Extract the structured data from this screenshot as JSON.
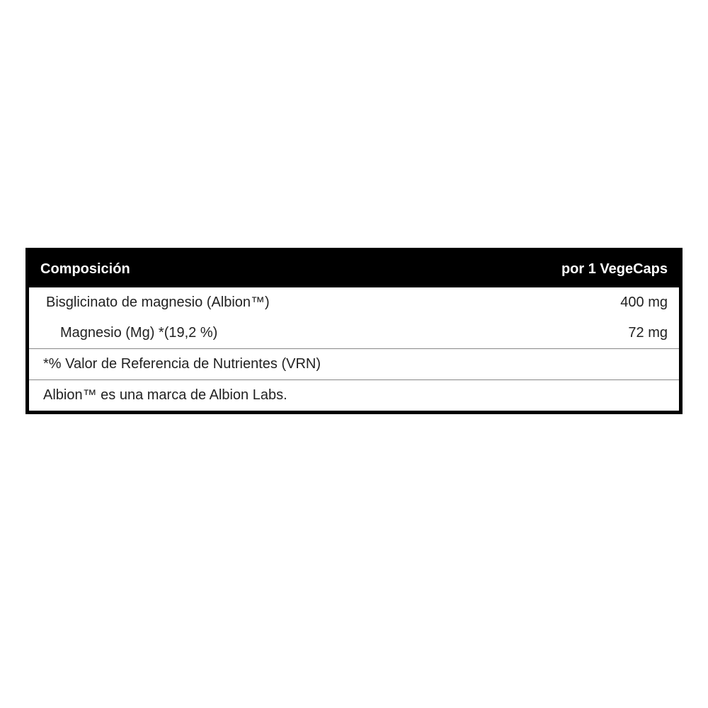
{
  "table": {
    "type": "table",
    "border_color": "#000000",
    "border_width": 5,
    "background_color": "#ffffff",
    "header_bg": "#000000",
    "header_text_color": "#ffffff",
    "body_text_color": "#222222",
    "divider_color": "#888888",
    "font_family": "Arial",
    "header_fontsize": 20,
    "body_fontsize": 20,
    "header": {
      "left": "Composición",
      "right": "por 1 VegeCaps"
    },
    "rows": [
      {
        "label": "Bisglicinato de magnesio (Albion™)",
        "value": "400 mg",
        "indent": false
      },
      {
        "label": "Magnesio (Mg) *(19,2 %)",
        "value": "72 mg",
        "indent": true
      }
    ],
    "footers": [
      "*% Valor de Referencia de Nutrientes (VRN)",
      "Albion™ es una marca de Albion Labs."
    ]
  }
}
